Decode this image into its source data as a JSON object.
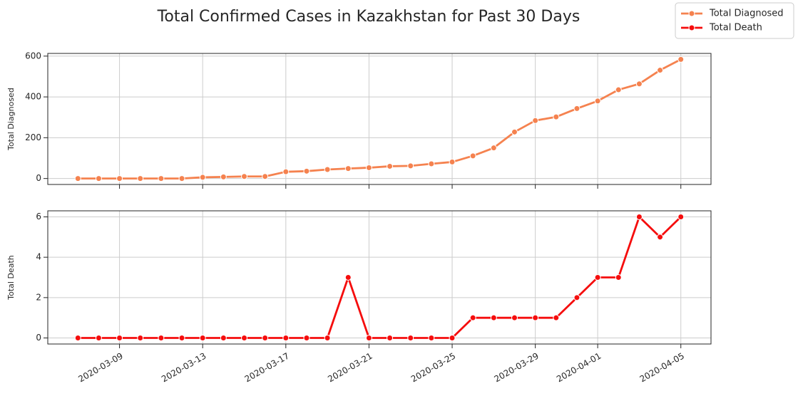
{
  "chart_data": {
    "type": "line",
    "title": "Total Confirmed Cases in Kazakhstan for Past 30 Days",
    "x": [
      "2020-03-07",
      "2020-03-08",
      "2020-03-09",
      "2020-03-10",
      "2020-03-11",
      "2020-03-12",
      "2020-03-13",
      "2020-03-14",
      "2020-03-15",
      "2020-03-16",
      "2020-03-17",
      "2020-03-18",
      "2020-03-19",
      "2020-03-20",
      "2020-03-21",
      "2020-03-22",
      "2020-03-23",
      "2020-03-24",
      "2020-03-25",
      "2020-03-26",
      "2020-03-27",
      "2020-03-28",
      "2020-03-29",
      "2020-03-30",
      "2020-03-31",
      "2020-04-01",
      "2020-04-02",
      "2020-04-03",
      "2020-04-04",
      "2020-04-05"
    ],
    "xlim": [
      "2020-03-05T13:12",
      "2020-04-06T10:48"
    ],
    "xticks": [
      "2020-03-09",
      "2020-03-13",
      "2020-03-17",
      "2020-03-21",
      "2020-03-25",
      "2020-03-29",
      "2020-04-01",
      "2020-04-05"
    ],
    "grid": true,
    "legend": "upper right",
    "panels": [
      {
        "ylabel": "Total Diagnosed",
        "ylim": [
          -29.2,
          613.2
        ],
        "yticks": [
          0,
          200,
          400,
          600
        ],
        "series": [
          {
            "name": "Total Diagnosed",
            "color": "#f5824f",
            "values": [
              0,
              0,
              0,
              0,
              0,
              0,
              6,
              8,
              10,
              10,
              33,
              36,
              44,
              49,
              53,
              60,
              62,
              72,
              81,
              111,
              150,
              228,
              284,
              302,
              343,
              380,
              435,
              464,
              531,
              584
            ]
          }
        ]
      },
      {
        "ylabel": "Total Death",
        "ylim": [
          -0.3,
          6.3
        ],
        "yticks": [
          0,
          2,
          4,
          6
        ],
        "series": [
          {
            "name": "Total Death",
            "color": "#f50d0d",
            "values": [
              0,
              0,
              0,
              0,
              0,
              0,
              0,
              0,
              0,
              0,
              0,
              0,
              0,
              3,
              0,
              0,
              0,
              0,
              0,
              1,
              1,
              1,
              1,
              1,
              2,
              3,
              3,
              6,
              5,
              6
            ]
          }
        ]
      }
    ]
  }
}
